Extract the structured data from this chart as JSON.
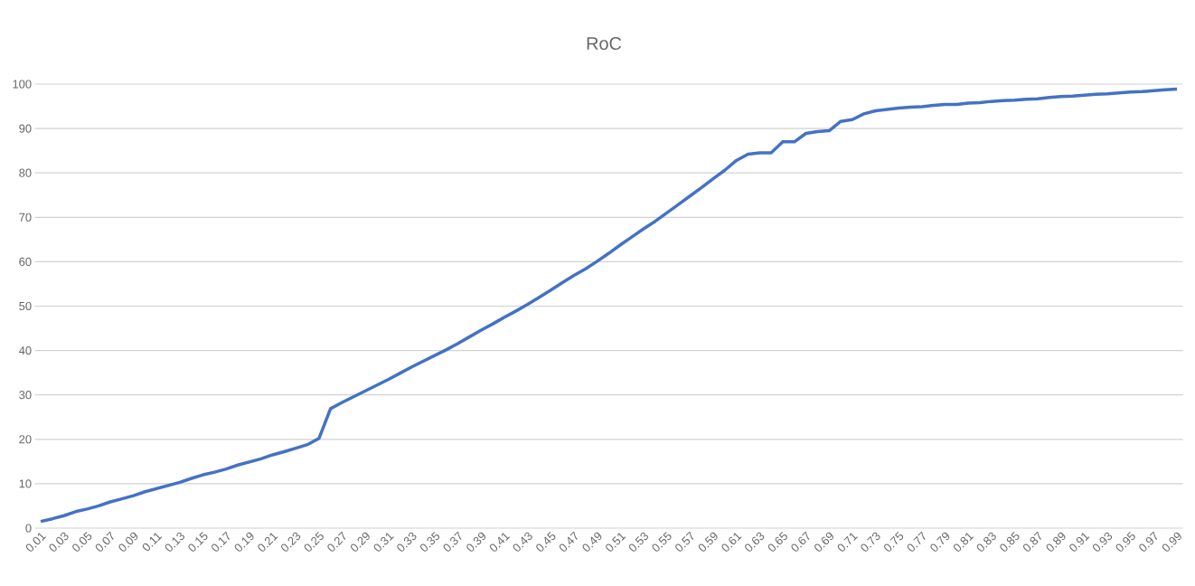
{
  "chart_data": {
    "type": "line",
    "title": "RoC",
    "categories": [
      "0.01",
      null,
      "0.03",
      null,
      "0.05",
      null,
      "0.07",
      null,
      "0.09",
      null,
      "0.11",
      null,
      "0.13",
      null,
      "0.15",
      null,
      "0.17",
      null,
      "0.19",
      null,
      "0.21",
      null,
      "0.23",
      null,
      "0.25",
      null,
      "0.27",
      null,
      "0.29",
      null,
      "0.31",
      null,
      "0.33",
      null,
      "0.35",
      null,
      "0.37",
      null,
      "0.39",
      null,
      "0.41",
      null,
      "0.43",
      null,
      "0.45",
      null,
      "0.47",
      null,
      "0.49",
      null,
      "0.51",
      null,
      "0.53",
      null,
      "0.55",
      null,
      "0.57",
      null,
      "0.59",
      null,
      "0.61",
      null,
      "0.63",
      null,
      "0.65",
      null,
      "0.67",
      null,
      "0.69",
      null,
      "0.71",
      null,
      "0.73",
      null,
      "0.75",
      null,
      "0.77",
      null,
      "0.79",
      null,
      "0.81",
      null,
      "0.83",
      null,
      "0.85",
      null,
      "0.87",
      null,
      "0.89",
      null,
      "0.91",
      null,
      "0.93",
      null,
      "0.95",
      null,
      "0.97",
      null,
      "0.99"
    ],
    "series": [
      {
        "color": "#4472c4",
        "values": [
          1.5,
          2.1,
          2.8,
          3.7,
          4.3,
          5.0,
          5.9,
          6.6,
          7.3,
          8.2,
          8.9,
          9.6,
          10.3,
          11.2,
          12.0,
          12.6,
          13.3,
          14.2,
          14.9,
          15.6,
          16.5,
          17.2,
          18.0,
          18.8,
          20.2,
          26.9,
          28.3,
          29.6,
          30.9,
          32.2,
          33.5,
          34.9,
          36.3,
          37.6,
          38.9,
          40.2,
          41.6,
          43.1,
          44.6,
          46.0,
          47.5,
          48.9,
          50.4,
          52.0,
          53.6,
          55.3,
          56.9,
          58.4,
          60.1,
          61.9,
          63.8,
          65.6,
          67.4,
          69.1,
          71.0,
          72.9,
          74.8,
          76.7,
          78.7,
          80.6,
          82.8,
          84.2,
          84.5,
          84.5,
          87.0,
          87.0,
          88.9,
          89.3,
          89.5,
          91.6,
          92.0,
          93.3,
          94.0,
          94.3,
          94.6,
          94.8,
          94.9,
          95.2,
          95.4,
          95.4,
          95.7,
          95.8,
          96.1,
          96.3,
          96.4,
          96.6,
          96.7,
          97.0,
          97.2,
          97.3,
          97.5,
          97.7,
          97.8,
          98.0,
          98.2,
          98.3,
          98.5,
          98.7,
          98.9
        ]
      }
    ],
    "ylim": [
      0,
      100
    ],
    "yticks": [
      0,
      10,
      20,
      30,
      40,
      50,
      60,
      70,
      80,
      90,
      100
    ],
    "grid": "y",
    "marker": "none",
    "line_style": "solid"
  }
}
